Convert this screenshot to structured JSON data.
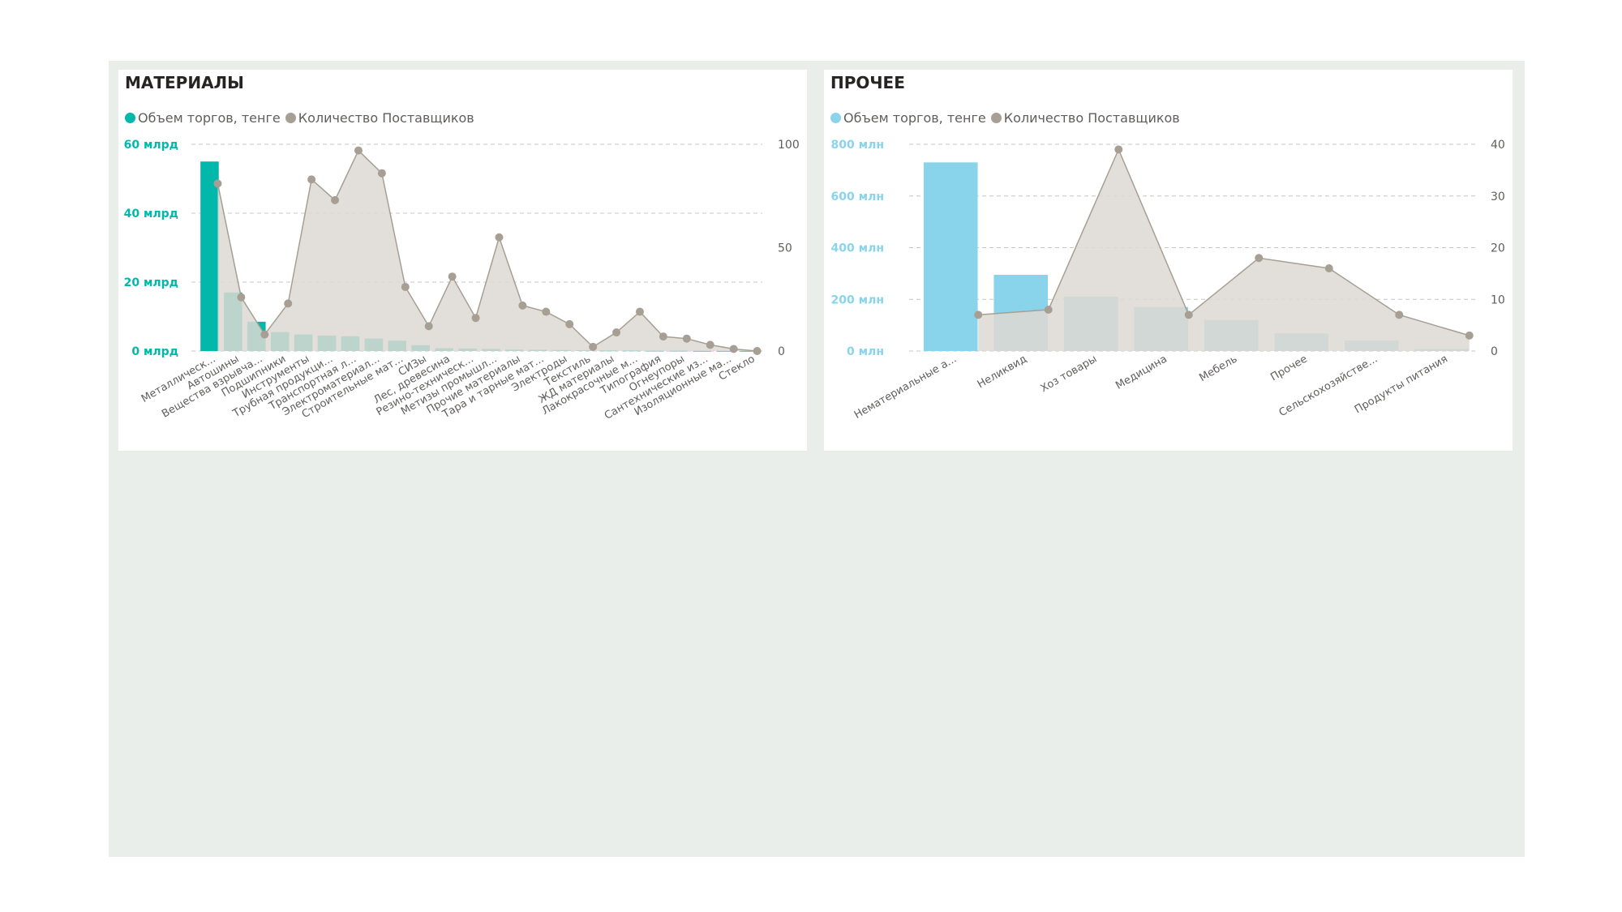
{
  "colors": {
    "canvas": "#e9eeeb",
    "card": "#ffffff",
    "materials_bar": "#01b8aa",
    "other_bar": "#8ad4eb",
    "suppliers": "#a79f94",
    "suppliers_fill": "#ddd8d2",
    "grid": "#c8c6c4",
    "text": "#605e5c"
  },
  "chart_data": [
    {
      "id": "materials",
      "title": "МАТЕРИАЛЫ",
      "type": "bar",
      "legend": [
        "Объем торгов, тенге",
        "Количество Поставщиков"
      ],
      "legend_position": "top-left",
      "categories": [
        "Металлическ...",
        "Автошины",
        "Вещества взрывча...",
        "Подшипники",
        "Инструменты",
        "Трубная продукци...",
        "Транспортная л...",
        "Электроматериал...",
        "Строительные мат...",
        "СИЗы",
        "Лес, древесина",
        "Резино-техническ...",
        "Метизы промышл...",
        "Прочие материалы",
        "Тара и тарные мат...",
        "Электроды",
        "Текстиль",
        "ЖД материалы",
        "Лакокрасочные м...",
        "Типография",
        "Огнеупоры",
        "Сантехнические из...",
        "Изоляционные ма...",
        "Стекло"
      ],
      "series": [
        {
          "name": "Объем торгов, тенге",
          "axis": "left",
          "values": [
            55000000000,
            17000000000,
            8500000000,
            5500000000,
            4800000000,
            4500000000,
            4300000000,
            3600000000,
            3000000000,
            1700000000,
            800000000,
            700000000,
            600000000,
            400000000,
            350000000,
            300000000,
            250000000,
            200000000,
            200000000,
            150000000,
            150000000,
            100000000,
            100000000,
            80000000
          ]
        },
        {
          "name": "Количество Поставщиков",
          "axis": "right",
          "values": [
            81,
            26,
            8,
            23,
            83,
            73,
            97,
            86,
            31,
            12,
            36,
            16,
            55,
            22,
            19,
            13,
            2,
            9,
            19,
            7,
            6,
            3,
            1,
            0
          ]
        }
      ],
      "left_ticks": [
        {
          "value": 0,
          "label": "0 млрд"
        },
        {
          "value": 20000000000,
          "label": "20 млрд"
        },
        {
          "value": 40000000000,
          "label": "40 млрд"
        },
        {
          "value": 60000000000,
          "label": "60 млрд"
        }
      ],
      "right_ticks": [
        {
          "value": 0,
          "label": "0"
        },
        {
          "value": 50,
          "label": "50"
        },
        {
          "value": 100,
          "label": "100"
        }
      ],
      "ylim_left": [
        0,
        60000000000
      ],
      "ylim_right": [
        0,
        100
      ],
      "grid": true
    },
    {
      "id": "other",
      "title": "ПРОЧЕЕ",
      "type": "bar",
      "legend": [
        "Объем торгов, тенге",
        "Количество Поставщиков"
      ],
      "legend_position": "top-left",
      "categories": [
        "Нематериальные а...",
        "Неликвид",
        "Хоз товары",
        "Медицина",
        "Мебель",
        "Прочее",
        "Сельскохозяйстве...",
        "Продукты питания"
      ],
      "series": [
        {
          "name": "Объем торгов, тенге",
          "axis": "left",
          "values": [
            730000000,
            295000000,
            210000000,
            170000000,
            120000000,
            68000000,
            40000000,
            8000000
          ]
        },
        {
          "name": "Количество Поставщиков",
          "axis": "right",
          "values": [
            7,
            8,
            39,
            7,
            18,
            16,
            7,
            3
          ]
        }
      ],
      "left_ticks": [
        {
          "value": 0,
          "label": "0 млн"
        },
        {
          "value": 200000000,
          "label": "200 млн"
        },
        {
          "value": 400000000,
          "label": "400 млн"
        },
        {
          "value": 600000000,
          "label": "600 млн"
        },
        {
          "value": 800000000,
          "label": "800 млн"
        }
      ],
      "right_ticks": [
        {
          "value": 0,
          "label": "0"
        },
        {
          "value": 10,
          "label": "10"
        },
        {
          "value": 20,
          "label": "20"
        },
        {
          "value": 30,
          "label": "30"
        },
        {
          "value": 40,
          "label": "40"
        }
      ],
      "ylim_left": [
        0,
        800000000
      ],
      "ylim_right": [
        0,
        40
      ],
      "grid": true
    }
  ]
}
